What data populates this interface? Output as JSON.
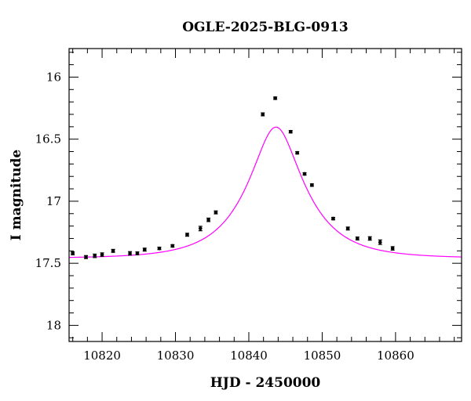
{
  "chart_data": {
    "type": "scatter",
    "title": "OGLE-2025-BLG-0913",
    "xlabel": "HJD - 2450000",
    "ylabel": "I magnitude",
    "xlim": [
      10815.5,
      10869
    ],
    "ylim": [
      18.13,
      15.77
    ],
    "y_inverted": true,
    "grid": false,
    "x_ticks": [
      10820,
      10830,
      10840,
      10850,
      10860
    ],
    "y_ticks": [
      16,
      16.5,
      17,
      17.5,
      18
    ],
    "x_tick_labels": [
      "10820",
      "10830",
      "10840",
      "10850",
      "10860"
    ],
    "y_tick_labels": [
      "16",
      "16.5",
      "17",
      "17.5",
      "18"
    ],
    "series": [
      {
        "type": "scatter",
        "color": "#000000",
        "x": [
          10816,
          10817.8,
          10819,
          10820,
          10821.5,
          10823.8,
          10824.8,
          10825.8,
          10827.8,
          10829.6,
          10831.6,
          10833.4,
          10834.5,
          10835.5,
          10841.9,
          10843.6,
          10845.7,
          10846.6,
          10847.6,
          10848.6,
          10851.5,
          10853.5,
          10854.8,
          10856.5,
          10857.9,
          10859.6
        ],
        "y": [
          17.42,
          17.45,
          17.44,
          17.43,
          17.4,
          17.42,
          17.42,
          17.39,
          17.38,
          17.36,
          17.27,
          17.22,
          17.15,
          17.09,
          16.3,
          16.17,
          16.44,
          16.61,
          16.78,
          16.87,
          17.14,
          17.22,
          17.3,
          17.3,
          17.33,
          17.38
        ],
        "yerr": [
          0.012,
          0.012,
          0.014,
          0.014,
          0.012,
          0.014,
          0.012,
          0.012,
          0.01,
          0.01,
          0.012,
          0.018,
          0.014,
          0.012,
          0.012,
          0.01,
          0.01,
          0.01,
          0.01,
          0.01,
          0.01,
          0.012,
          0.012,
          0.014,
          0.018,
          0.014
        ]
      },
      {
        "type": "line",
        "color": "#ff00ff",
        "model": {
          "t0": 10843.7,
          "u0": 0.4,
          "tE": 7.3,
          "base_mag": 17.46
        }
      }
    ]
  }
}
